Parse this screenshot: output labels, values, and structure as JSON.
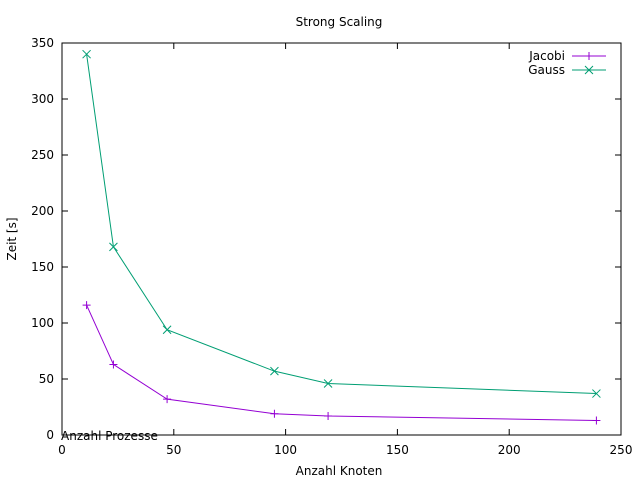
{
  "chart_data": {
    "type": "line",
    "title": "Strong Scaling",
    "xlabel": "Anzahl Knoten",
    "ylabel": "Zeit [s]",
    "annotation": "Anzahl Prozesse",
    "xlim": [
      0,
      250
    ],
    "ylim": [
      0,
      350
    ],
    "xticks": [
      0,
      50,
      100,
      150,
      200,
      250
    ],
    "yticks": [
      0,
      50,
      100,
      150,
      200,
      250,
      300,
      350
    ],
    "grid": false,
    "legend_position": "top-right",
    "series": [
      {
        "name": "Jacobi",
        "color": "#9400d3",
        "marker": "plus",
        "x": [
          11,
          23,
          47,
          95,
          119,
          239
        ],
        "y": [
          116,
          63,
          32,
          19,
          17,
          13
        ]
      },
      {
        "name": "Gauss",
        "color": "#009e73",
        "marker": "cross",
        "x": [
          11,
          23,
          47,
          95,
          119,
          239
        ],
        "y": [
          340,
          168,
          94,
          57,
          46,
          37
        ]
      }
    ]
  }
}
